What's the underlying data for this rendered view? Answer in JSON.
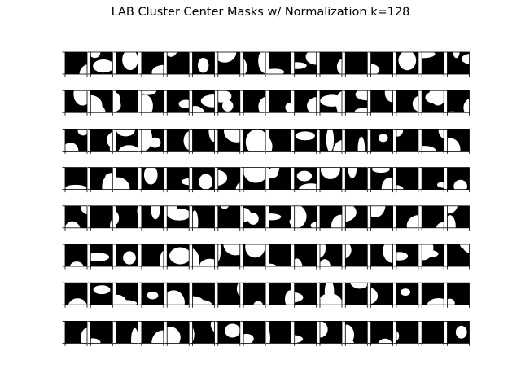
{
  "title": "LAB Cluster Center Masks w/ Normalization k=128",
  "chart_data": {
    "type": "heatmap",
    "title": "LAB Cluster Center Masks w/ Normalization k=128",
    "subplot_rows": 8,
    "subplot_cols": 16,
    "panels_shown": 128,
    "mask_values": [
      0,
      1
    ],
    "mask_colors": {
      "0": "#000000",
      "1": "#ffffff"
    },
    "ticks": "unlabeled",
    "grid": false
  }
}
